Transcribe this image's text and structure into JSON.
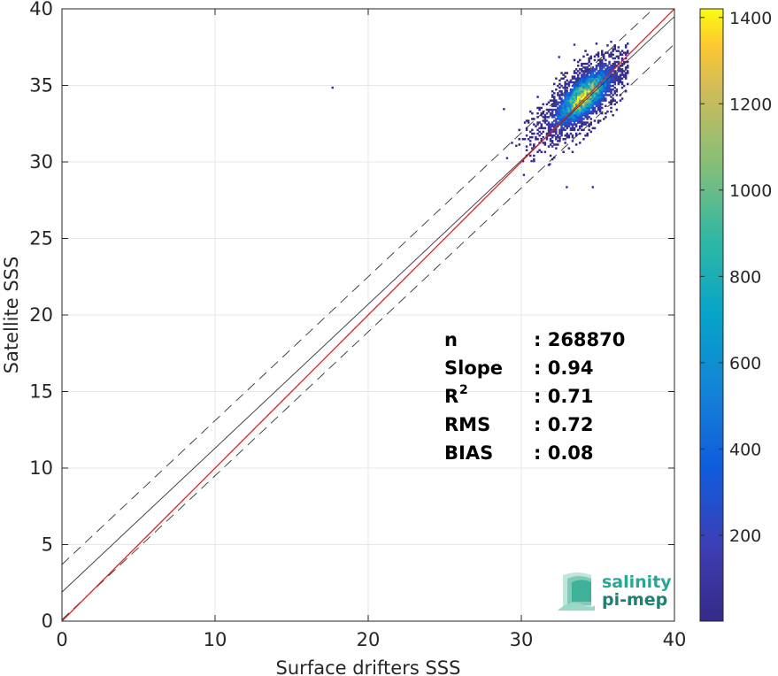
{
  "chart_data": {
    "type": "scatter",
    "subtype": "2d-density-histogram",
    "xlabel": "Surface drifters SSS",
    "ylabel": "Satellite SSS",
    "xlim": [
      0,
      40
    ],
    "ylim": [
      0,
      40
    ],
    "xticks": [
      0,
      10,
      20,
      30,
      40
    ],
    "yticks": [
      0,
      5,
      10,
      15,
      20,
      25,
      30,
      35,
      40
    ],
    "grid": true,
    "colorbar": {
      "range": [
        1,
        1420
      ],
      "ticks": [
        200,
        400,
        600,
        800,
        1000,
        1200,
        1400
      ],
      "colormap": "parula"
    },
    "lines": {
      "one_to_one": {
        "x": [
          0,
          40
        ],
        "y": [
          0,
          40
        ],
        "color": "#e8191f"
      },
      "regression": {
        "x": [
          0,
          40
        ],
        "y": [
          1.9,
          39.5
        ],
        "slope": 0.94,
        "intercept": 1.9,
        "color": "#333333"
      },
      "regression_plus_rms": {
        "x": [
          0,
          40
        ],
        "y": [
          3.7,
          41.3
        ],
        "style": "dashed",
        "color": "#333333"
      },
      "regression_minus_rms": {
        "x": [
          0,
          40
        ],
        "y": [
          0.1,
          37.7
        ],
        "style": "dashed",
        "color": "#333333"
      }
    },
    "density": {
      "center": [
        34.0,
        34.2
      ],
      "peak_count": 1420,
      "x_range": [
        29.2,
        36.9
      ],
      "y_range": [
        28.2,
        37.7
      ]
    },
    "outliers": [
      {
        "x": 17.6,
        "y": 34.8
      },
      {
        "x": 29.0,
        "y": 30.2
      },
      {
        "x": 30.1,
        "y": 29.1
      },
      {
        "x": 32.9,
        "y": 28.3
      },
      {
        "x": 34.6,
        "y": 28.3
      },
      {
        "x": 28.8,
        "y": 33.4
      },
      {
        "x": 32.4,
        "y": 36.8
      },
      {
        "x": 33.4,
        "y": 37.6
      },
      {
        "x": 35.8,
        "y": 37.8
      },
      {
        "x": 29.6,
        "y": 31.0
      },
      {
        "x": 30.6,
        "y": 30.0
      },
      {
        "x": 31.8,
        "y": 29.8
      }
    ],
    "stats": [
      {
        "label": "n",
        "sup": "",
        "value": ": 268870"
      },
      {
        "label": "Slope",
        "sup": "",
        "value": ": 0.94"
      },
      {
        "label": "R",
        "sup": "2",
        "value": ": 0.71"
      },
      {
        "label": "RMS",
        "sup": "",
        "value": ": 0.72"
      },
      {
        "label": "BIAS",
        "sup": "",
        "value": ": 0.08"
      }
    ]
  },
  "logo": {
    "line1": "salinity",
    "line2": "pi-mep",
    "color": "#27a893"
  }
}
